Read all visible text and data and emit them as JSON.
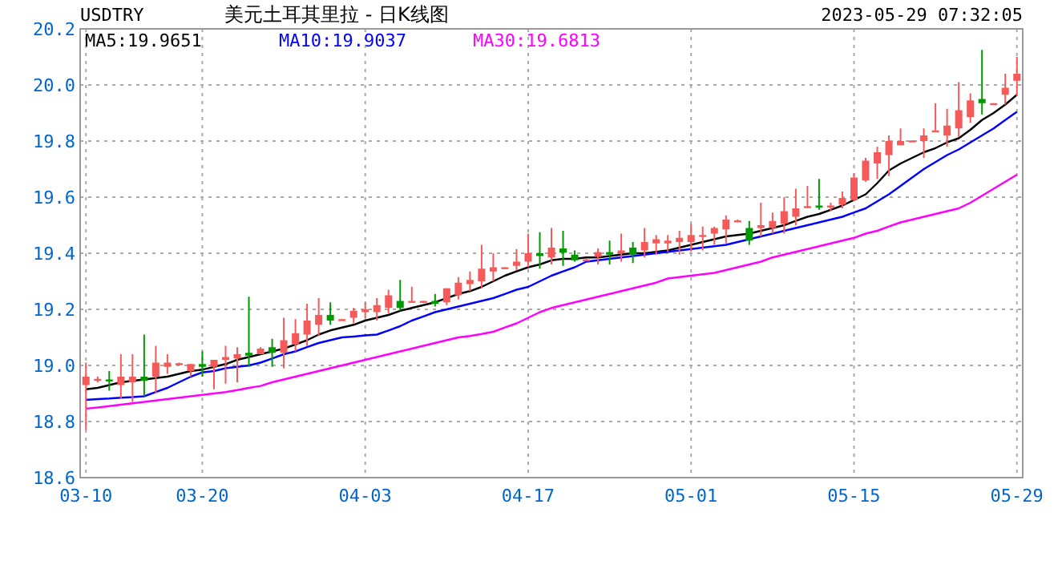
{
  "chart_data": {
    "type": "candlestick",
    "title": "美元土耳其里拉 - 日K线图",
    "subtitle": "USDTRY",
    "annotations": [
      "2023-05-29 07:32:05"
    ],
    "categories": [
      "03-10",
      null,
      null,
      null,
      null,
      null,
      null,
      null,
      null,
      null,
      "03-20",
      null,
      null,
      null,
      null,
      null,
      null,
      null,
      null,
      null,
      null,
      null,
      null,
      null,
      "04-03",
      null,
      null,
      null,
      null,
      null,
      null,
      null,
      null,
      null,
      null,
      null,
      null,
      null,
      "04-17",
      null,
      null,
      null,
      null,
      null,
      null,
      null,
      null,
      null,
      null,
      null,
      null,
      null,
      "05-01",
      null,
      null,
      null,
      null,
      null,
      null,
      null,
      null,
      null,
      null,
      null,
      null,
      null,
      "05-15",
      null,
      null,
      null,
      null,
      null,
      null,
      null,
      null,
      null,
      null,
      null,
      null,
      null,
      "05-29"
    ],
    "ylim": [
      18.6,
      20.2
    ],
    "yticks": [
      18.6,
      18.8,
      {
        "value": 19.0,
        "label": "19.0"
      },
      19.2,
      19.4,
      19.6,
      19.8,
      {
        "value": 20.0,
        "label": "20.0"
      },
      20.2
    ],
    "grid": true,
    "legend": "top left",
    "series": [
      {
        "type": "candlestick",
        "ohlc": [
          [
            18.93,
            19.01,
            18.77,
            18.96
          ],
          [
            18.95,
            18.96,
            18.94,
            18.952
          ],
          [
            18.95,
            18.98,
            18.91,
            18.945
          ],
          [
            18.93,
            19.04,
            18.88,
            18.96
          ],
          [
            18.94,
            19.04,
            18.87,
            18.96
          ],
          [
            18.96,
            19.11,
            18.89,
            18.945
          ],
          [
            18.96,
            19.07,
            18.9,
            19.01
          ],
          [
            18.995,
            19.04,
            18.97,
            19.01
          ],
          [
            19.005,
            19.01,
            19.0,
            19.008
          ],
          [
            18.98,
            19.005,
            18.96,
            19.005
          ],
          [
            19.005,
            19.05,
            18.96,
            18.995
          ],
          [
            18.995,
            19.02,
            18.915,
            19.02
          ],
          [
            19.02,
            19.07,
            18.935,
            19.03
          ],
          [
            19.025,
            19.065,
            18.94,
            19.04
          ],
          [
            19.045,
            19.245,
            18.995,
            19.035
          ],
          [
            19.04,
            19.065,
            19.04,
            19.06
          ],
          [
            19.065,
            19.095,
            18.995,
            19.045
          ],
          [
            19.045,
            19.17,
            18.99,
            19.09
          ],
          [
            19.075,
            19.165,
            19.05,
            19.115
          ],
          [
            19.11,
            19.22,
            19.07,
            19.16
          ],
          [
            19.145,
            19.24,
            19.105,
            19.18
          ],
          [
            19.18,
            19.225,
            19.145,
            19.16
          ],
          [
            19.16,
            19.165,
            19.16,
            19.165
          ],
          [
            19.17,
            19.205,
            19.15,
            19.195
          ],
          [
            19.19,
            19.225,
            19.17,
            19.2
          ],
          [
            19.19,
            19.24,
            19.16,
            19.215
          ],
          [
            19.205,
            19.27,
            19.185,
            19.25
          ],
          [
            19.23,
            19.305,
            19.195,
            19.205
          ],
          [
            19.225,
            19.28,
            19.225,
            19.23
          ],
          [
            19.228,
            19.23,
            19.225,
            19.23
          ],
          [
            19.23,
            19.255,
            19.21,
            19.22
          ],
          [
            19.225,
            19.275,
            19.215,
            19.275
          ],
          [
            19.25,
            19.315,
            19.235,
            19.295
          ],
          [
            19.29,
            19.335,
            19.265,
            19.305
          ],
          [
            19.3,
            19.43,
            19.275,
            19.345
          ],
          [
            19.335,
            19.4,
            19.3,
            19.35
          ],
          [
            19.348,
            19.35,
            19.345,
            19.35
          ],
          [
            19.355,
            19.415,
            19.34,
            19.37
          ],
          [
            19.37,
            19.47,
            19.35,
            19.4
          ],
          [
            19.4,
            19.475,
            19.345,
            19.39
          ],
          [
            19.385,
            19.49,
            19.36,
            19.42
          ],
          [
            19.417,
            19.48,
            19.355,
            19.402
          ],
          [
            19.395,
            19.41,
            19.37,
            19.375
          ],
          [
            19.375,
            19.38,
            19.372,
            19.378
          ],
          [
            19.387,
            19.417,
            19.36,
            19.404
          ],
          [
            19.404,
            19.445,
            19.36,
            19.395
          ],
          [
            19.4,
            19.47,
            19.37,
            19.41
          ],
          [
            19.42,
            19.44,
            19.365,
            19.395
          ],
          [
            19.41,
            19.49,
            19.385,
            19.44
          ],
          [
            19.435,
            19.465,
            19.395,
            19.45
          ],
          [
            19.435,
            19.465,
            19.405,
            19.445
          ],
          [
            19.44,
            19.48,
            19.395,
            19.455
          ],
          [
            19.44,
            19.505,
            19.405,
            19.465
          ],
          [
            19.463,
            19.495,
            19.41,
            19.465
          ],
          [
            19.47,
            19.495,
            19.43,
            19.49
          ],
          [
            19.485,
            19.535,
            19.435,
            19.52
          ],
          [
            19.515,
            19.52,
            19.515,
            19.517
          ],
          [
            19.49,
            19.515,
            19.43,
            19.445
          ],
          [
            19.49,
            19.58,
            19.46,
            19.5
          ],
          [
            19.49,
            19.545,
            19.47,
            19.515
          ],
          [
            19.505,
            19.6,
            19.47,
            19.55
          ],
          [
            19.53,
            19.63,
            19.5,
            19.56
          ],
          [
            19.565,
            19.64,
            19.56,
            19.568
          ],
          [
            19.57,
            19.665,
            19.555,
            19.565
          ],
          [
            19.565,
            19.58,
            19.55,
            19.57
          ],
          [
            19.573,
            19.62,
            19.56,
            19.597
          ],
          [
            19.59,
            19.685,
            19.585,
            19.67
          ],
          [
            19.66,
            19.74,
            19.655,
            19.73
          ],
          [
            19.72,
            19.78,
            19.665,
            19.76
          ],
          [
            19.75,
            19.82,
            19.675,
            19.8
          ],
          [
            19.785,
            19.845,
            19.785,
            19.8
          ],
          [
            19.8,
            19.802,
            19.798,
            19.802
          ],
          [
            19.8,
            19.845,
            19.74,
            19.82
          ],
          [
            19.835,
            19.935,
            19.835,
            19.838
          ],
          [
            19.82,
            19.915,
            19.78,
            19.855
          ],
          [
            19.845,
            20.01,
            19.815,
            19.91
          ],
          [
            19.885,
            19.97,
            19.865,
            19.945
          ],
          [
            19.95,
            20.125,
            19.895,
            19.935
          ],
          [
            19.933,
            19.935,
            19.93,
            19.935
          ],
          [
            19.965,
            20.04,
            19.93,
            19.99
          ],
          [
            20.015,
            20.1,
            19.96,
            20.04
          ]
        ],
        "colors": [
          "#f55a5a",
          "#f55a5a",
          "#009900",
          "#f55a5a",
          "#f55a5a",
          "#009900",
          "#f55a5a",
          "#f55a5a",
          "#f55a5a",
          "#f55a5a",
          "#009900",
          "#f55a5a",
          "#f55a5a",
          "#f55a5a",
          "#009900",
          "#f55a5a",
          "#009900",
          "#f55a5a",
          "#f55a5a",
          "#f55a5a",
          "#f55a5a",
          "#009900",
          "#f55a5a",
          "#f55a5a",
          "#f55a5a",
          "#f55a5a",
          "#f55a5a",
          "#009900",
          "#f55a5a",
          "#f55a5a",
          "#009900",
          "#f55a5a",
          "#f55a5a",
          "#f55a5a",
          "#f55a5a",
          "#f55a5a",
          "#f55a5a",
          "#f55a5a",
          "#f55a5a",
          "#009900",
          "#f55a5a",
          "#009900",
          "#009900",
          "#f55a5a",
          "#f55a5a",
          "#009900",
          "#f55a5a",
          "#009900",
          "#f55a5a",
          "#f55a5a",
          "#f55a5a",
          "#f55a5a",
          "#f55a5a",
          "#f55a5a",
          "#f55a5a",
          "#f55a5a",
          "#f55a5a",
          "#009900",
          "#f55a5a",
          "#f55a5a",
          "#f55a5a",
          "#f55a5a",
          "#f55a5a",
          "#009900",
          "#f55a5a",
          "#f55a5a",
          "#f55a5a",
          "#f55a5a",
          "#f55a5a",
          "#f55a5a",
          "#f55a5a",
          "#f55a5a",
          "#f55a5a",
          "#f55a5a",
          "#f55a5a",
          "#f55a5a",
          "#f55a5a",
          "#009900",
          "#f55a5a",
          "#f55a5a",
          "#f55a5a"
        ]
      },
      {
        "type": "line",
        "name": "MA5:19.9651",
        "color": "#000000",
        "values": [
          18.915,
          18.92,
          18.93,
          18.94,
          18.945,
          18.95,
          18.955,
          18.96,
          18.97,
          18.98,
          18.985,
          18.995,
          19.005,
          19.02,
          19.03,
          19.04,
          19.05,
          19.06,
          19.075,
          19.09,
          19.11,
          19.125,
          19.135,
          19.145,
          19.16,
          19.17,
          19.18,
          19.195,
          19.205,
          19.215,
          19.225,
          19.24,
          19.255,
          19.265,
          19.28,
          19.3,
          19.32,
          19.335,
          19.35,
          19.36,
          19.375,
          19.38,
          19.38,
          19.385,
          19.385,
          19.39,
          19.395,
          19.4,
          19.4,
          19.405,
          19.41,
          19.42,
          19.43,
          19.44,
          19.45,
          19.46,
          19.465,
          19.47,
          19.48,
          19.49,
          19.5,
          19.515,
          19.53,
          19.54,
          19.555,
          19.57,
          19.59,
          19.61,
          19.65,
          19.695,
          19.72,
          19.74,
          19.76,
          19.775,
          19.795,
          19.81,
          19.84,
          19.875,
          19.9,
          19.93,
          19.965
        ]
      },
      {
        "type": "line",
        "name": "MA10:19.9037",
        "color": "#0000ff",
        "values": [
          18.877,
          18.88,
          18.882,
          18.885,
          18.887,
          18.89,
          18.905,
          18.92,
          18.94,
          18.96,
          18.975,
          18.98,
          18.99,
          18.995,
          19.0,
          19.01,
          19.025,
          19.04,
          19.05,
          19.065,
          19.08,
          19.09,
          19.1,
          19.103,
          19.107,
          19.11,
          19.125,
          19.14,
          19.16,
          19.175,
          19.19,
          19.2,
          19.21,
          19.22,
          19.23,
          19.24,
          19.255,
          19.27,
          19.28,
          19.3,
          19.32,
          19.335,
          19.35,
          19.37,
          19.375,
          19.38,
          19.385,
          19.39,
          19.395,
          19.4,
          19.405,
          19.41,
          19.415,
          19.42,
          19.425,
          19.43,
          19.44,
          19.45,
          19.46,
          19.47,
          19.48,
          19.49,
          19.5,
          19.51,
          19.52,
          19.53,
          19.545,
          19.56,
          19.585,
          19.61,
          19.64,
          19.67,
          19.7,
          19.725,
          19.75,
          19.77,
          19.795,
          19.82,
          19.845,
          19.875,
          19.904
        ]
      },
      {
        "type": "line",
        "name": "MA30:19.6813",
        "color": "#ff00ff",
        "values": [
          18.846,
          18.85,
          18.855,
          18.86,
          18.865,
          18.87,
          18.875,
          18.88,
          18.885,
          18.89,
          18.895,
          18.9,
          18.905,
          18.912,
          18.92,
          18.927,
          18.94,
          18.95,
          18.96,
          18.97,
          18.98,
          18.99,
          19.0,
          19.01,
          19.02,
          19.03,
          19.04,
          19.05,
          19.06,
          19.07,
          19.08,
          19.09,
          19.1,
          19.105,
          19.112,
          19.12,
          19.135,
          19.15,
          19.17,
          19.19,
          19.205,
          19.215,
          19.225,
          19.235,
          19.245,
          19.255,
          19.265,
          19.275,
          19.285,
          19.295,
          19.31,
          19.315,
          19.32,
          19.325,
          19.33,
          19.34,
          19.35,
          19.36,
          19.37,
          19.385,
          19.395,
          19.405,
          19.415,
          19.425,
          19.435,
          19.445,
          19.455,
          19.47,
          19.48,
          19.495,
          19.51,
          19.52,
          19.53,
          19.54,
          19.55,
          19.56,
          19.58,
          19.605,
          19.63,
          19.655,
          19.68
        ]
      }
    ]
  }
}
